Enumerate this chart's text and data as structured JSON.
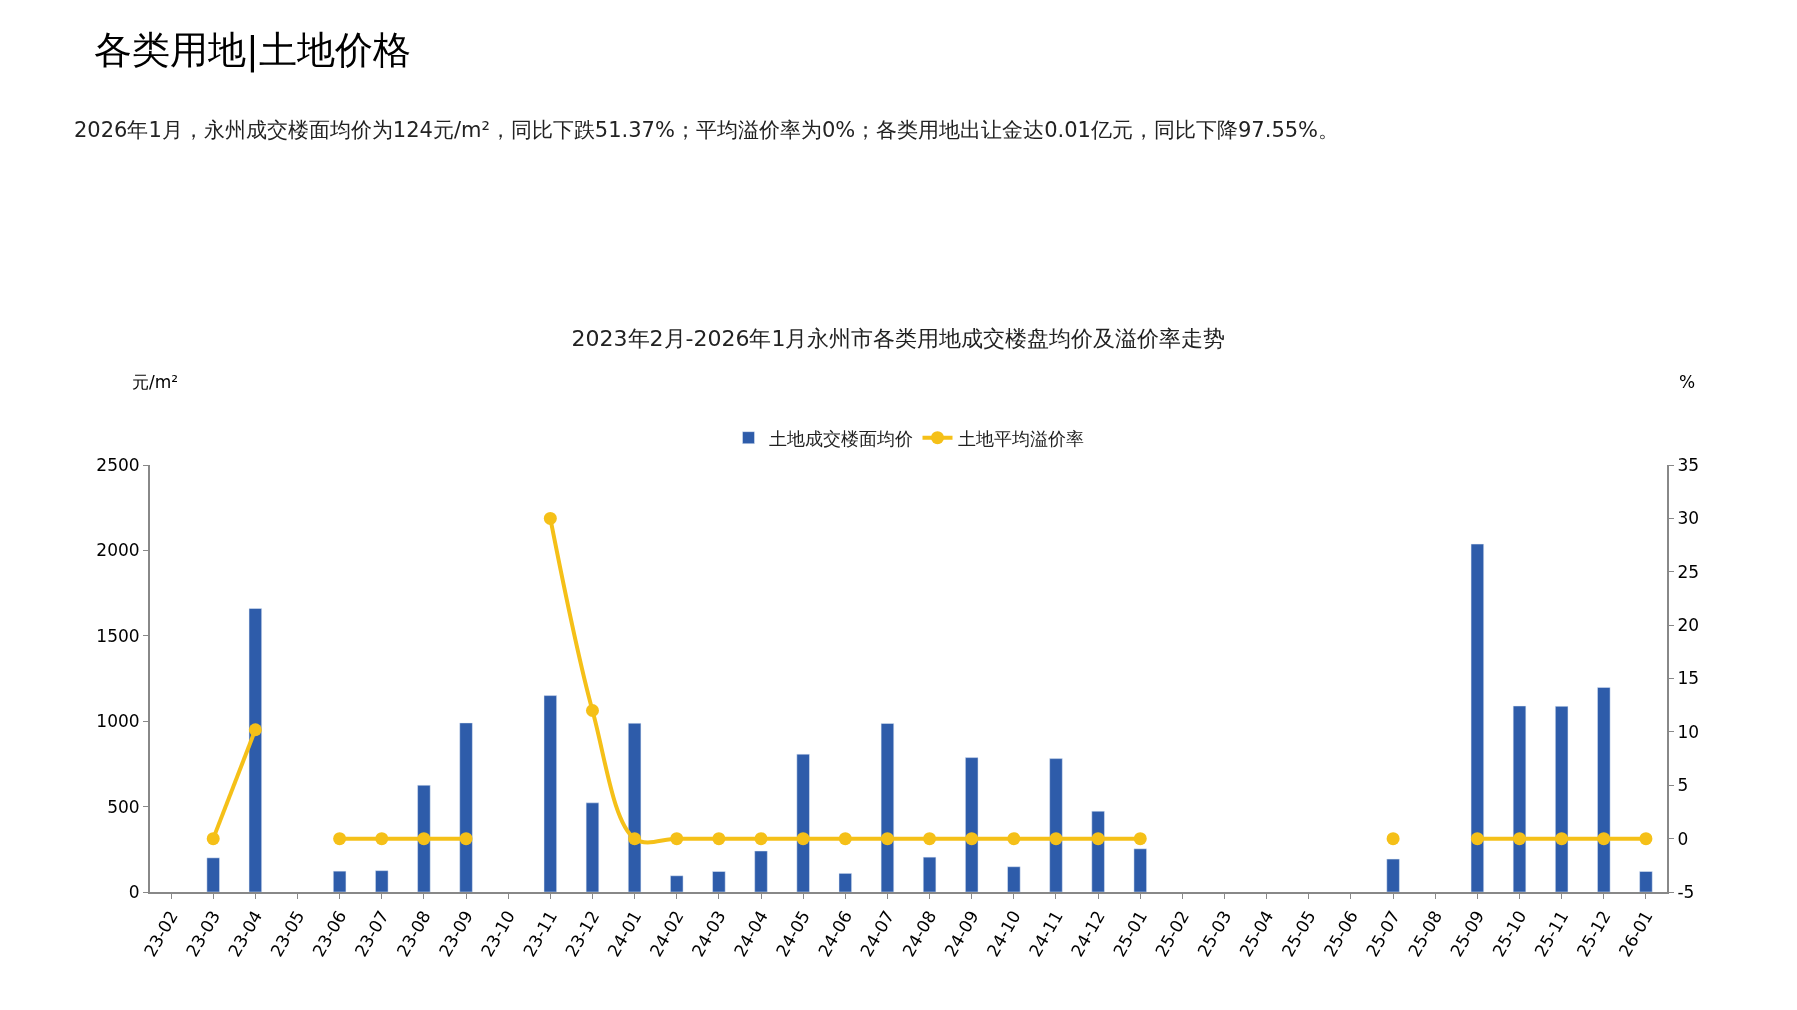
{
  "chart_data": {
    "type": "bar",
    "title": "2023年2月-2026年1月永州市各类用地成交楼盘均价及溢价率走势",
    "subtitle": "2026年1月，永州成交楼面均价为124元/m²，同比下跌51.37%；平均溢价率为0%；各类用地出让金达0.01亿元，同比下降97.55%。",
    "annotations": [
      "各类用地|土地价格"
    ],
    "ylabel": "元/m²",
    "y2label": "%",
    "categories": [
      "23-02",
      "23-03",
      "23-04",
      "23-05",
      "23-06",
      "23-07",
      "23-08",
      "23-09",
      "23-10",
      "23-11",
      "23-12",
      "24-01",
      "24-02",
      "24-03",
      "24-04",
      "24-05",
      "24-06",
      "24-07",
      "24-08",
      "24-09",
      "24-10",
      "24-11",
      "24-12",
      "25-01",
      "25-02",
      "25-03",
      "25-04",
      "25-05",
      "25-06",
      "25-07",
      "25-08",
      "25-09",
      "25-10",
      "25-11",
      "25-12",
      "26-01"
    ],
    "series": [
      {
        "name": "土地成交楼面均价",
        "color": "#2e5caa",
        "values": [
          null,
          200,
          1660,
          null,
          122,
          125,
          625,
          990,
          null,
          1150,
          522,
          988,
          95,
          120,
          240,
          807,
          109,
          987,
          204,
          787,
          148,
          781,
          473,
          253,
          null,
          null,
          null,
          null,
          null,
          193,
          null,
          2037,
          1089,
          1087,
          1198,
          120
        ]
      },
      {
        "name": "土地平均溢价率",
        "type": "line",
        "axis": "y2",
        "color": "#f5c018",
        "marker": "circle",
        "line_style": "solid",
        "values": [
          null,
          0,
          10.2,
          null,
          0,
          0,
          0,
          0,
          null,
          30,
          12,
          0,
          0,
          0,
          0,
          0,
          0,
          0,
          0,
          0,
          0,
          0,
          0,
          0,
          null,
          null,
          null,
          null,
          null,
          0,
          null,
          0,
          0,
          0,
          0,
          0
        ]
      }
    ],
    "ylim": [
      0,
      2500
    ],
    "yticks": [
      0,
      500,
      1000,
      1500,
      2000,
      2500
    ],
    "y2lim": [
      -5,
      35
    ],
    "y2ticks": [
      -5,
      0,
      5,
      10,
      15,
      20,
      25,
      30,
      35
    ],
    "legend": "top"
  }
}
